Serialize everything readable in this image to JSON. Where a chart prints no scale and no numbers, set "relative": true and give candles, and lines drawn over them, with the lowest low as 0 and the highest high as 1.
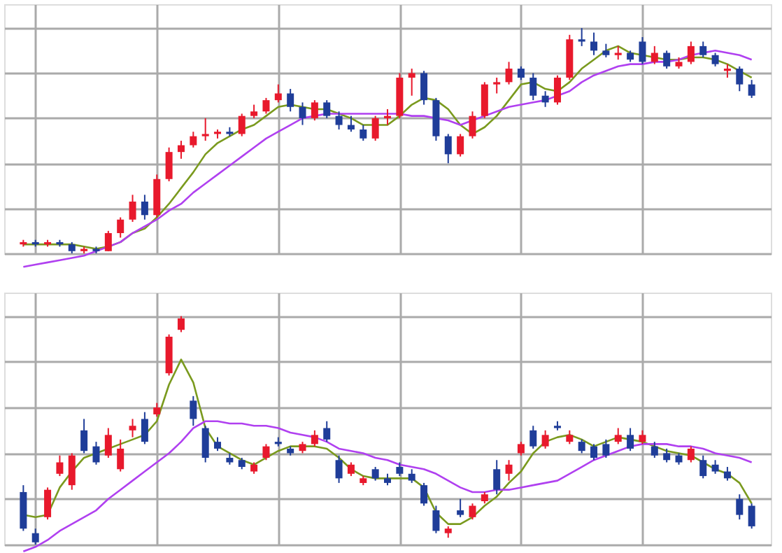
{
  "chart_data": [
    {
      "type": "candlestick",
      "relative": true,
      "grid": true,
      "categories": [
        null,
        null,
        null,
        null,
        null,
        null,
        null,
        null,
        null,
        null,
        null,
        null,
        null,
        null,
        null,
        null,
        null,
        null,
        null,
        null,
        null,
        null,
        null,
        null,
        null,
        null,
        null,
        null,
        null,
        null,
        null,
        null,
        null,
        null,
        null,
        null,
        null,
        null,
        null,
        null,
        null,
        null,
        null,
        null,
        null,
        null,
        null,
        null,
        null,
        null,
        null,
        null,
        null,
        null,
        null,
        null,
        null,
        null,
        null,
        null,
        null
      ],
      "ohlc": [
        [
          0.04,
          0.06,
          0.03,
          0.05
        ],
        [
          0.05,
          0.06,
          0.03,
          0.04
        ],
        [
          0.04,
          0.06,
          0.03,
          0.05
        ],
        [
          0.05,
          0.06,
          0.03,
          0.04
        ],
        [
          0.04,
          0.05,
          0.0,
          0.01
        ],
        [
          0.01,
          0.03,
          0.0,
          0.02
        ],
        [
          0.02,
          0.03,
          0.0,
          0.01
        ],
        [
          0.01,
          0.1,
          0.01,
          0.09
        ],
        [
          0.09,
          0.16,
          0.07,
          0.15
        ],
        [
          0.15,
          0.26,
          0.14,
          0.23
        ],
        [
          0.23,
          0.26,
          0.15,
          0.17
        ],
        [
          0.17,
          0.35,
          0.16,
          0.33
        ],
        [
          0.33,
          0.47,
          0.32,
          0.45
        ],
        [
          0.45,
          0.5,
          0.42,
          0.48
        ],
        [
          0.48,
          0.54,
          0.47,
          0.52
        ],
        [
          0.52,
          0.6,
          0.5,
          0.53
        ],
        [
          0.53,
          0.55,
          0.51,
          0.54
        ],
        [
          0.54,
          0.56,
          0.52,
          0.53
        ],
        [
          0.53,
          0.62,
          0.52,
          0.61
        ],
        [
          0.61,
          0.66,
          0.6,
          0.63
        ],
        [
          0.63,
          0.69,
          0.62,
          0.68
        ],
        [
          0.68,
          0.75,
          0.67,
          0.71
        ],
        [
          0.71,
          0.73,
          0.63,
          0.65
        ],
        [
          0.65,
          0.67,
          0.57,
          0.6
        ],
        [
          0.6,
          0.68,
          0.59,
          0.67
        ],
        [
          0.67,
          0.68,
          0.6,
          0.61
        ],
        [
          0.61,
          0.63,
          0.55,
          0.57
        ],
        [
          0.57,
          0.61,
          0.54,
          0.55
        ],
        [
          0.55,
          0.57,
          0.5,
          0.51
        ],
        [
          0.51,
          0.61,
          0.5,
          0.6
        ],
        [
          0.6,
          0.64,
          0.57,
          0.61
        ],
        [
          0.61,
          0.8,
          0.6,
          0.78
        ],
        [
          0.78,
          0.82,
          0.7,
          0.8
        ],
        [
          0.8,
          0.81,
          0.66,
          0.68
        ],
        [
          0.68,
          0.69,
          0.5,
          0.52
        ],
        [
          0.52,
          0.53,
          0.4,
          0.44
        ],
        [
          0.44,
          0.53,
          0.43,
          0.52
        ],
        [
          0.52,
          0.63,
          0.51,
          0.61
        ],
        [
          0.61,
          0.76,
          0.6,
          0.75
        ],
        [
          0.75,
          0.78,
          0.71,
          0.76
        ],
        [
          0.76,
          0.85,
          0.75,
          0.82
        ],
        [
          0.82,
          0.83,
          0.77,
          0.78
        ],
        [
          0.78,
          0.8,
          0.68,
          0.7
        ],
        [
          0.7,
          0.72,
          0.65,
          0.67
        ],
        [
          0.67,
          0.79,
          0.66,
          0.78
        ],
        [
          0.78,
          0.97,
          0.77,
          0.95
        ],
        [
          0.95,
          1.0,
          0.92,
          0.94
        ],
        [
          0.94,
          0.98,
          0.88,
          0.9
        ],
        [
          0.9,
          0.93,
          0.87,
          0.88
        ],
        [
          0.88,
          0.92,
          0.86,
          0.89
        ],
        [
          0.89,
          0.9,
          0.85,
          0.86
        ],
        [
          0.94,
          0.96,
          0.84,
          0.85
        ],
        [
          0.85,
          0.92,
          0.84,
          0.89
        ],
        [
          0.89,
          0.9,
          0.82,
          0.83
        ],
        [
          0.83,
          0.87,
          0.82,
          0.85
        ],
        [
          0.85,
          0.94,
          0.84,
          0.92
        ],
        [
          0.92,
          0.94,
          0.87,
          0.88
        ],
        [
          0.88,
          0.89,
          0.83,
          0.84
        ],
        [
          0.81,
          0.84,
          0.78,
          0.82
        ],
        [
          0.82,
          0.83,
          0.72,
          0.75
        ],
        [
          0.75,
          0.77,
          0.69,
          0.7
        ]
      ],
      "colors": [
        "#e8192c",
        "#1f3d99",
        "#e8192c",
        "#1f3d99",
        "#1f3d99",
        "#e8192c",
        "#1f3d99",
        "#e8192c",
        "#e8192c",
        "#e8192c",
        "#1f3d99",
        "#e8192c",
        "#e8192c",
        "#e8192c",
        "#e8192c",
        "#e8192c",
        "#e8192c",
        "#1f3d99",
        "#e8192c",
        "#e8192c",
        "#e8192c",
        "#e8192c",
        "#1f3d99",
        "#1f3d99",
        "#e8192c",
        "#1f3d99",
        "#1f3d99",
        "#1f3d99",
        "#1f3d99",
        "#e8192c",
        "#e8192c",
        "#e8192c",
        "#e8192c",
        "#1f3d99",
        "#1f3d99",
        "#1f3d99",
        "#e8192c",
        "#e8192c",
        "#e8192c",
        "#e8192c",
        "#e8192c",
        "#1f3d99",
        "#1f3d99",
        "#1f3d99",
        "#e8192c",
        "#e8192c",
        "#1f3d99",
        "#1f3d99",
        "#1f3d99",
        "#e8192c",
        "#1f3d99",
        "#1f3d99",
        "#e8192c",
        "#1f3d99",
        "#e8192c",
        "#e8192c",
        "#1f3d99",
        "#1f3d99",
        "#e8192c",
        "#1f3d99",
        "#1f3d99"
      ],
      "series": [
        {
          "type": "line",
          "color": "#7a9a1e",
          "values": [
            0.04,
            0.04,
            0.04,
            0.04,
            0.04,
            0.03,
            0.02,
            0.03,
            0.05,
            0.09,
            0.11,
            0.16,
            0.22,
            0.29,
            0.36,
            0.44,
            0.49,
            0.52,
            0.55,
            0.57,
            0.61,
            0.65,
            0.66,
            0.65,
            0.64,
            0.64,
            0.62,
            0.6,
            0.57,
            0.57,
            0.57,
            0.61,
            0.66,
            0.69,
            0.68,
            0.64,
            0.57,
            0.53,
            0.56,
            0.61,
            0.68,
            0.75,
            0.76,
            0.73,
            0.72,
            0.76,
            0.82,
            0.86,
            0.9,
            0.92,
            0.89,
            0.88,
            0.87,
            0.86,
            0.86,
            0.87,
            0.87,
            0.86,
            0.84,
            0.81,
            0.78
          ]
        },
        {
          "type": "line",
          "color": "#b040f0",
          "values": [
            -0.06,
            -0.05,
            -0.04,
            -0.03,
            -0.02,
            -0.01,
            0.01,
            0.03,
            0.05,
            0.09,
            0.12,
            0.15,
            0.19,
            0.22,
            0.27,
            0.31,
            0.35,
            0.39,
            0.43,
            0.47,
            0.51,
            0.54,
            0.57,
            0.6,
            0.61,
            0.62,
            0.62,
            0.62,
            0.62,
            0.62,
            0.62,
            0.62,
            0.61,
            0.61,
            0.6,
            0.59,
            0.57,
            0.59,
            0.61,
            0.63,
            0.65,
            0.66,
            0.67,
            0.68,
            0.7,
            0.72,
            0.76,
            0.79,
            0.81,
            0.83,
            0.84,
            0.84,
            0.85,
            0.85,
            0.86,
            0.88,
            0.89,
            0.9,
            0.89,
            0.88,
            0.86
          ]
        }
      ]
    },
    {
      "type": "candlestick",
      "relative": true,
      "grid": true,
      "categories": [
        null,
        null,
        null,
        null,
        null,
        null,
        null,
        null,
        null,
        null,
        null,
        null,
        null,
        null,
        null,
        null,
        null,
        null,
        null,
        null,
        null,
        null,
        null,
        null,
        null,
        null,
        null,
        null,
        null,
        null,
        null,
        null,
        null,
        null,
        null,
        null,
        null,
        null,
        null,
        null,
        null,
        null,
        null,
        null,
        null,
        null,
        null,
        null,
        null,
        null,
        null,
        null,
        null,
        null,
        null,
        null,
        null,
        null,
        null,
        null,
        null
      ],
      "ohlc": [
        [
          0.23,
          0.26,
          0.06,
          0.07
        ],
        [
          0.05,
          0.07,
          0.0,
          0.01
        ],
        [
          0.12,
          0.25,
          0.11,
          0.24
        ],
        [
          0.31,
          0.39,
          0.3,
          0.36
        ],
        [
          0.26,
          0.4,
          0.24,
          0.39
        ],
        [
          0.5,
          0.55,
          0.4,
          0.41
        ],
        [
          0.43,
          0.45,
          0.35,
          0.36
        ],
        [
          0.39,
          0.51,
          0.38,
          0.48
        ],
        [
          0.33,
          0.46,
          0.32,
          0.42
        ],
        [
          0.5,
          0.55,
          0.47,
          0.52
        ],
        [
          0.55,
          0.58,
          0.44,
          0.45
        ],
        [
          0.57,
          0.62,
          0.56,
          0.6
        ],
        [
          0.75,
          0.92,
          0.74,
          0.91
        ],
        [
          0.94,
          1.0,
          0.93,
          0.99
        ],
        [
          0.63,
          0.65,
          0.52,
          0.55
        ],
        [
          0.51,
          0.52,
          0.36,
          0.38
        ],
        [
          0.45,
          0.47,
          0.41,
          0.42
        ],
        [
          0.38,
          0.4,
          0.35,
          0.36
        ],
        [
          0.37,
          0.38,
          0.33,
          0.34
        ],
        [
          0.32,
          0.36,
          0.31,
          0.35
        ],
        [
          0.38,
          0.44,
          0.37,
          0.43
        ],
        [
          0.45,
          0.47,
          0.43,
          0.44
        ],
        [
          0.42,
          0.43,
          0.39,
          0.4
        ],
        [
          0.41,
          0.45,
          0.4,
          0.44
        ],
        [
          0.44,
          0.5,
          0.43,
          0.48
        ],
        [
          0.51,
          0.54,
          0.45,
          0.46
        ],
        [
          0.37,
          0.39,
          0.27,
          0.29
        ],
        [
          0.31,
          0.36,
          0.3,
          0.35
        ],
        [
          0.27,
          0.3,
          0.26,
          0.29
        ],
        [
          0.33,
          0.34,
          0.28,
          0.29
        ],
        [
          0.29,
          0.31,
          0.26,
          0.27
        ],
        [
          0.34,
          0.36,
          0.3,
          0.31
        ],
        [
          0.31,
          0.33,
          0.27,
          0.28
        ],
        [
          0.26,
          0.27,
          0.17,
          0.18
        ],
        [
          0.15,
          0.17,
          0.05,
          0.06
        ],
        [
          0.05,
          0.08,
          0.03,
          0.07
        ],
        [
          0.15,
          0.2,
          0.12,
          0.13
        ],
        [
          0.12,
          0.18,
          0.11,
          0.17
        ],
        [
          0.19,
          0.23,
          0.18,
          0.22
        ],
        [
          0.33,
          0.37,
          0.22,
          0.24
        ],
        [
          0.31,
          0.37,
          0.28,
          0.35
        ],
        [
          0.4,
          0.45,
          0.39,
          0.44
        ],
        [
          0.5,
          0.52,
          0.42,
          0.43
        ],
        [
          0.43,
          0.5,
          0.42,
          0.48
        ],
        [
          0.52,
          0.54,
          0.5,
          0.51
        ],
        [
          0.45,
          0.5,
          0.44,
          0.48
        ],
        [
          0.45,
          0.46,
          0.4,
          0.41
        ],
        [
          0.43,
          0.44,
          0.37,
          0.38
        ],
        [
          0.44,
          0.46,
          0.38,
          0.39
        ],
        [
          0.45,
          0.51,
          0.44,
          0.48
        ],
        [
          0.48,
          0.51,
          0.41,
          0.42
        ],
        [
          0.45,
          0.5,
          0.44,
          0.48
        ],
        [
          0.43,
          0.45,
          0.38,
          0.39
        ],
        [
          0.4,
          0.42,
          0.36,
          0.37
        ],
        [
          0.39,
          0.4,
          0.35,
          0.36
        ],
        [
          0.37,
          0.43,
          0.36,
          0.42
        ],
        [
          0.37,
          0.39,
          0.29,
          0.3
        ],
        [
          0.35,
          0.37,
          0.31,
          0.32
        ],
        [
          0.32,
          0.34,
          0.28,
          0.29
        ],
        [
          0.2,
          0.22,
          0.11,
          0.13
        ],
        [
          0.17,
          0.18,
          0.07,
          0.08
        ]
      ],
      "colors": [
        "#1f3d99",
        "#1f3d99",
        "#e8192c",
        "#e8192c",
        "#e8192c",
        "#1f3d99",
        "#1f3d99",
        "#e8192c",
        "#e8192c",
        "#e8192c",
        "#1f3d99",
        "#e8192c",
        "#e8192c",
        "#e8192c",
        "#1f3d99",
        "#1f3d99",
        "#1f3d99",
        "#1f3d99",
        "#1f3d99",
        "#e8192c",
        "#e8192c",
        "#1f3d99",
        "#1f3d99",
        "#e8192c",
        "#e8192c",
        "#1f3d99",
        "#1f3d99",
        "#e8192c",
        "#e8192c",
        "#1f3d99",
        "#1f3d99",
        "#1f3d99",
        "#1f3d99",
        "#1f3d99",
        "#1f3d99",
        "#e8192c",
        "#1f3d99",
        "#e8192c",
        "#e8192c",
        "#1f3d99",
        "#e8192c",
        "#e8192c",
        "#1f3d99",
        "#e8192c",
        "#1f3d99",
        "#e8192c",
        "#1f3d99",
        "#1f3d99",
        "#1f3d99",
        "#e8192c",
        "#1f3d99",
        "#e8192c",
        "#1f3d99",
        "#1f3d99",
        "#1f3d99",
        "#e8192c",
        "#1f3d99",
        "#1f3d99",
        "#1f3d99",
        "#1f3d99",
        "#1f3d99"
      ],
      "series": [
        {
          "type": "line",
          "color": "#7a9a1e",
          "values": [
            0.13,
            0.12,
            0.13,
            0.25,
            0.32,
            0.38,
            0.4,
            0.42,
            0.44,
            0.46,
            0.48,
            0.54,
            0.7,
            0.81,
            0.71,
            0.51,
            0.43,
            0.4,
            0.37,
            0.35,
            0.38,
            0.41,
            0.43,
            0.43,
            0.43,
            0.42,
            0.38,
            0.33,
            0.3,
            0.29,
            0.29,
            0.29,
            0.29,
            0.25,
            0.14,
            0.09,
            0.09,
            0.12,
            0.17,
            0.21,
            0.27,
            0.32,
            0.4,
            0.45,
            0.47,
            0.48,
            0.46,
            0.43,
            0.45,
            0.47,
            0.46,
            0.45,
            0.43,
            0.41,
            0.4,
            0.39,
            0.36,
            0.33,
            0.31,
            0.27,
            0.18
          ]
        },
        {
          "type": "line",
          "color": "#b040f0",
          "values": [
            -0.03,
            -0.01,
            0.02,
            0.06,
            0.09,
            0.12,
            0.15,
            0.2,
            0.24,
            0.28,
            0.32,
            0.36,
            0.4,
            0.45,
            0.51,
            0.54,
            0.54,
            0.53,
            0.53,
            0.52,
            0.52,
            0.51,
            0.49,
            0.48,
            0.47,
            0.45,
            0.42,
            0.41,
            0.4,
            0.38,
            0.37,
            0.35,
            0.34,
            0.33,
            0.31,
            0.28,
            0.25,
            0.23,
            0.23,
            0.24,
            0.24,
            0.25,
            0.26,
            0.27,
            0.28,
            0.31,
            0.34,
            0.37,
            0.39,
            0.41,
            0.43,
            0.44,
            0.44,
            0.44,
            0.43,
            0.43,
            0.42,
            0.4,
            0.39,
            0.38,
            0.36
          ]
        }
      ]
    }
  ]
}
